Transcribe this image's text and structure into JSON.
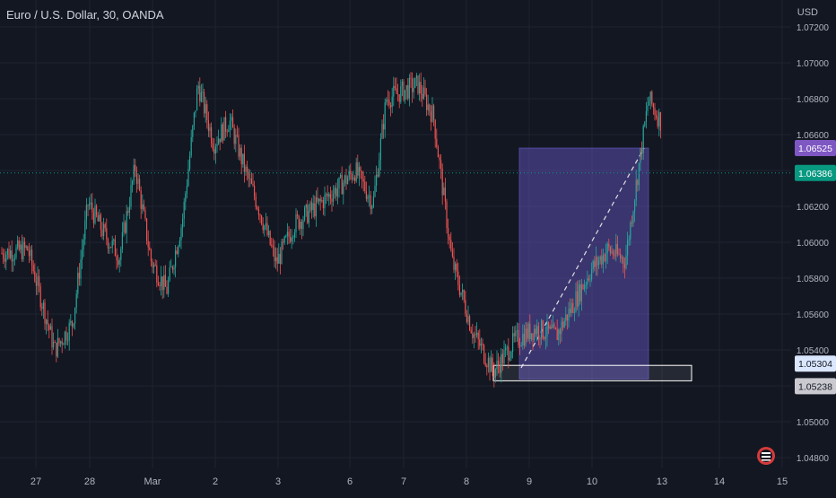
{
  "header": {
    "title": "Euro / U.S. Dollar, 30, OANDA",
    "currency": "USD"
  },
  "colors": {
    "background": "#131722",
    "grid": "#1f2330",
    "up": "#26a69a",
    "down": "#ef5350",
    "text": "#b2b5be",
    "range_box": "#6a5acd",
    "current_price": "#089981",
    "target_label": "#7e57c2",
    "level_label": "#ffffff"
  },
  "chart_data": {
    "type": "line",
    "title": "Euro / U.S. Dollar, 30, OANDA",
    "xlabel": "",
    "ylabel": "",
    "ylim": [
      1.0474,
      1.0735
    ],
    "x_ticks": [
      "27",
      "28",
      "Mar",
      "2",
      "3",
      "6",
      "7",
      "8",
      "9",
      "10",
      "13",
      "14",
      "15"
    ],
    "y_ticks": [
      "1.04800",
      "1.05000",
      "1.05200",
      "1.05400",
      "1.05600",
      "1.05800",
      "1.06000",
      "1.06200",
      "1.06400",
      "1.06600",
      "1.06800",
      "1.07000",
      "1.07200"
    ],
    "series": [
      {
        "values": [
          {
            "x": "27",
            "y": 1.0596
          },
          {
            "x": "27",
            "y": 1.054
          },
          {
            "x": "28",
            "y": 1.0555
          },
          {
            "x": "28",
            "y": 1.0622
          },
          {
            "x": "28",
            "y": 1.0605
          },
          {
            "x": "28",
            "y": 1.0592
          },
          {
            "x": "Mar",
            "y": 1.0642
          },
          {
            "x": "Mar",
            "y": 1.059
          },
          {
            "x": "Mar",
            "y": 1.0573
          },
          {
            "x": "Mar",
            "y": 1.0612
          },
          {
            "x": "2",
            "y": 1.0688
          },
          {
            "x": "2",
            "y": 1.0655
          },
          {
            "x": "2",
            "y": 1.0668
          },
          {
            "x": "2",
            "y": 1.064
          },
          {
            "x": "3",
            "y": 1.062
          },
          {
            "x": "3",
            "y": 1.0588
          },
          {
            "x": "3",
            "y": 1.061
          },
          {
            "x": "3",
            "y": 1.0618
          },
          {
            "x": "6",
            "y": 1.063
          },
          {
            "x": "6",
            "y": 1.064
          },
          {
            "x": "6",
            "y": 1.0622
          },
          {
            "x": "7",
            "y": 1.068
          },
          {
            "x": "7",
            "y": 1.0684
          },
          {
            "x": "7",
            "y": 1.0688
          },
          {
            "x": "7",
            "y": 1.067
          },
          {
            "x": "8",
            "y": 1.059
          },
          {
            "x": "8",
            "y": 1.055
          },
          {
            "x": "8",
            "y": 1.0528
          },
          {
            "x": "9",
            "y": 1.0545
          },
          {
            "x": "9",
            "y": 1.0552
          },
          {
            "x": "9",
            "y": 1.0548
          },
          {
            "x": "10",
            "y": 1.0565
          },
          {
            "x": "10",
            "y": 1.0584
          },
          {
            "x": "10",
            "y": 1.0596
          },
          {
            "x": "10",
            "y": 1.059
          },
          {
            "x": "13",
            "y": 1.068
          },
          {
            "x": "13",
            "y": 1.066
          },
          {
            "x": "13",
            "y": 1.064
          }
        ]
      }
    ],
    "price_labels": [
      {
        "text": "1.06525",
        "value": 1.06525,
        "role": "target"
      },
      {
        "text": "1.06386",
        "value": 1.06386,
        "role": "current"
      },
      {
        "text": "1.05304",
        "value": 1.05304,
        "role": "level-high"
      },
      {
        "text": "1.05238",
        "value": 1.05238,
        "role": "level-low"
      }
    ],
    "range_box": {
      "from": "9",
      "to": "13",
      "y_from": 1.05238,
      "y_to": 1.06525
    },
    "level_box": {
      "from": "8",
      "to": "14",
      "y_from": 1.05238,
      "y_to": 1.05304
    },
    "grid": true,
    "legend": "none"
  },
  "watermark": {
    "icon": "tradingview-logo-icon"
  }
}
